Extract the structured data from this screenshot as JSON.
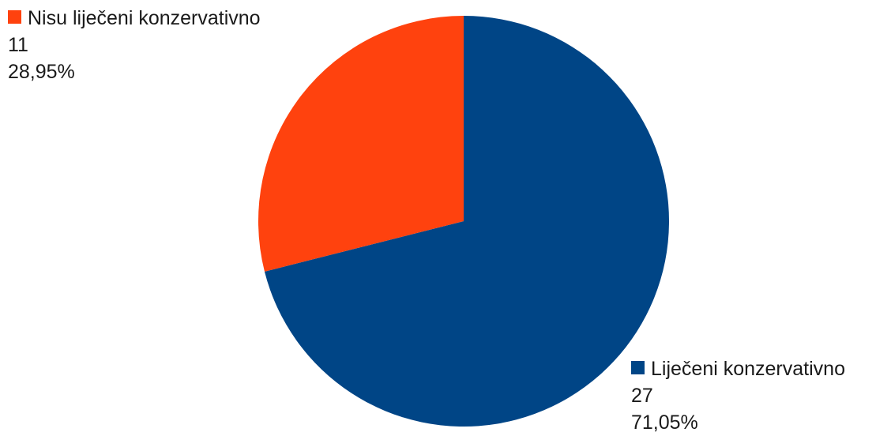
{
  "chart_data": {
    "type": "pie",
    "title": "",
    "start_angle_deg": 0,
    "direction": "clockwise",
    "slices": [
      {
        "name": "Liječeni konzervativno",
        "value": 27,
        "percent_label": "71,05%",
        "color": "#004586"
      },
      {
        "name": "Nisu liječeni konzervativno",
        "value": 11,
        "percent_label": "28,95%",
        "color": "#ff420e"
      }
    ],
    "legend": "data labels next to slices"
  }
}
